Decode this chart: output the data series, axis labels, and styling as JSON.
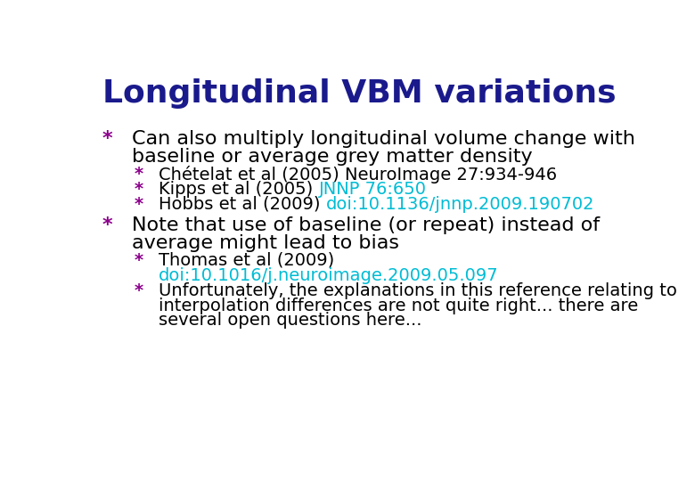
{
  "title": "Longitudinal VBM variations",
  "title_color": "#1a1a8c",
  "title_fontsize": 26,
  "background_color": "#ffffff",
  "bullet_color": "#8b008b",
  "link_color": "#00bcd4",
  "text_color": "#000000",
  "content": [
    {
      "level": 1,
      "type": "plain",
      "lines": [
        "Can also multiply longitudinal volume change with",
        "baseline or average grey matter density"
      ]
    },
    {
      "level": 2,
      "type": "plain",
      "lines": [
        "Chételat et al (2005) NeuroImage 27:934-946"
      ]
    },
    {
      "level": 2,
      "type": "mixed",
      "plain": "Kipps et al (2005) ",
      "link": "JNNP 76:650"
    },
    {
      "level": 2,
      "type": "mixed",
      "plain": "Hobbs et al (2009) ",
      "link": "doi:10.1136/jnnp.2009.190702"
    },
    {
      "level": 1,
      "type": "plain",
      "lines": [
        "Note that use of baseline (or repeat) instead of",
        "average might lead to bias"
      ]
    },
    {
      "level": 2,
      "type": "twolines",
      "line1": "Thomas et al (2009)",
      "line2_link": "doi:10.1016/j.neuroimage.2009.05.097"
    },
    {
      "level": 2,
      "type": "plain",
      "lines": [
        "Unfortunately, the explanations in this reference relating to",
        "interpolation differences are not quite right... there are",
        "several open questions here..."
      ]
    }
  ]
}
